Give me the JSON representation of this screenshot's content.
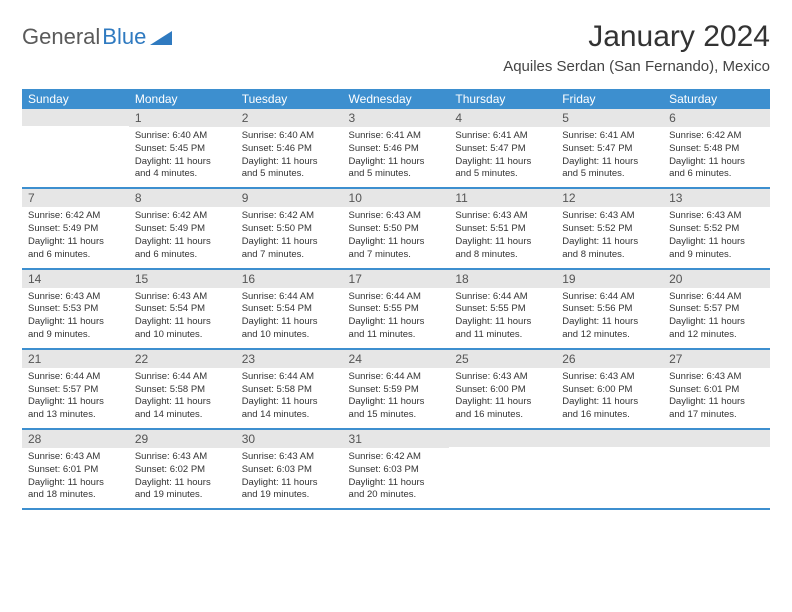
{
  "logo": {
    "text1": "General",
    "text2": "Blue"
  },
  "title": {
    "month": "January 2024",
    "location": "Aquiles Serdan (San Fernando), Mexico"
  },
  "colors": {
    "header_bg": "#3d8fcf",
    "header_text": "#ffffff",
    "daynum_bg": "#e6e6e6",
    "text": "#333333",
    "rule": "#3d8fcf"
  },
  "dayNames": [
    "Sunday",
    "Monday",
    "Tuesday",
    "Wednesday",
    "Thursday",
    "Friday",
    "Saturday"
  ],
  "weeks": [
    [
      {
        "num": "",
        "lines": []
      },
      {
        "num": "1",
        "lines": [
          "Sunrise: 6:40 AM",
          "Sunset: 5:45 PM",
          "Daylight: 11 hours",
          "and 4 minutes."
        ]
      },
      {
        "num": "2",
        "lines": [
          "Sunrise: 6:40 AM",
          "Sunset: 5:46 PM",
          "Daylight: 11 hours",
          "and 5 minutes."
        ]
      },
      {
        "num": "3",
        "lines": [
          "Sunrise: 6:41 AM",
          "Sunset: 5:46 PM",
          "Daylight: 11 hours",
          "and 5 minutes."
        ]
      },
      {
        "num": "4",
        "lines": [
          "Sunrise: 6:41 AM",
          "Sunset: 5:47 PM",
          "Daylight: 11 hours",
          "and 5 minutes."
        ]
      },
      {
        "num": "5",
        "lines": [
          "Sunrise: 6:41 AM",
          "Sunset: 5:47 PM",
          "Daylight: 11 hours",
          "and 5 minutes."
        ]
      },
      {
        "num": "6",
        "lines": [
          "Sunrise: 6:42 AM",
          "Sunset: 5:48 PM",
          "Daylight: 11 hours",
          "and 6 minutes."
        ]
      }
    ],
    [
      {
        "num": "7",
        "lines": [
          "Sunrise: 6:42 AM",
          "Sunset: 5:49 PM",
          "Daylight: 11 hours",
          "and 6 minutes."
        ]
      },
      {
        "num": "8",
        "lines": [
          "Sunrise: 6:42 AM",
          "Sunset: 5:49 PM",
          "Daylight: 11 hours",
          "and 6 minutes."
        ]
      },
      {
        "num": "9",
        "lines": [
          "Sunrise: 6:42 AM",
          "Sunset: 5:50 PM",
          "Daylight: 11 hours",
          "and 7 minutes."
        ]
      },
      {
        "num": "10",
        "lines": [
          "Sunrise: 6:43 AM",
          "Sunset: 5:50 PM",
          "Daylight: 11 hours",
          "and 7 minutes."
        ]
      },
      {
        "num": "11",
        "lines": [
          "Sunrise: 6:43 AM",
          "Sunset: 5:51 PM",
          "Daylight: 11 hours",
          "and 8 minutes."
        ]
      },
      {
        "num": "12",
        "lines": [
          "Sunrise: 6:43 AM",
          "Sunset: 5:52 PM",
          "Daylight: 11 hours",
          "and 8 minutes."
        ]
      },
      {
        "num": "13",
        "lines": [
          "Sunrise: 6:43 AM",
          "Sunset: 5:52 PM",
          "Daylight: 11 hours",
          "and 9 minutes."
        ]
      }
    ],
    [
      {
        "num": "14",
        "lines": [
          "Sunrise: 6:43 AM",
          "Sunset: 5:53 PM",
          "Daylight: 11 hours",
          "and 9 minutes."
        ]
      },
      {
        "num": "15",
        "lines": [
          "Sunrise: 6:43 AM",
          "Sunset: 5:54 PM",
          "Daylight: 11 hours",
          "and 10 minutes."
        ]
      },
      {
        "num": "16",
        "lines": [
          "Sunrise: 6:44 AM",
          "Sunset: 5:54 PM",
          "Daylight: 11 hours",
          "and 10 minutes."
        ]
      },
      {
        "num": "17",
        "lines": [
          "Sunrise: 6:44 AM",
          "Sunset: 5:55 PM",
          "Daylight: 11 hours",
          "and 11 minutes."
        ]
      },
      {
        "num": "18",
        "lines": [
          "Sunrise: 6:44 AM",
          "Sunset: 5:55 PM",
          "Daylight: 11 hours",
          "and 11 minutes."
        ]
      },
      {
        "num": "19",
        "lines": [
          "Sunrise: 6:44 AM",
          "Sunset: 5:56 PM",
          "Daylight: 11 hours",
          "and 12 minutes."
        ]
      },
      {
        "num": "20",
        "lines": [
          "Sunrise: 6:44 AM",
          "Sunset: 5:57 PM",
          "Daylight: 11 hours",
          "and 12 minutes."
        ]
      }
    ],
    [
      {
        "num": "21",
        "lines": [
          "Sunrise: 6:44 AM",
          "Sunset: 5:57 PM",
          "Daylight: 11 hours",
          "and 13 minutes."
        ]
      },
      {
        "num": "22",
        "lines": [
          "Sunrise: 6:44 AM",
          "Sunset: 5:58 PM",
          "Daylight: 11 hours",
          "and 14 minutes."
        ]
      },
      {
        "num": "23",
        "lines": [
          "Sunrise: 6:44 AM",
          "Sunset: 5:58 PM",
          "Daylight: 11 hours",
          "and 14 minutes."
        ]
      },
      {
        "num": "24",
        "lines": [
          "Sunrise: 6:44 AM",
          "Sunset: 5:59 PM",
          "Daylight: 11 hours",
          "and 15 minutes."
        ]
      },
      {
        "num": "25",
        "lines": [
          "Sunrise: 6:43 AM",
          "Sunset: 6:00 PM",
          "Daylight: 11 hours",
          "and 16 minutes."
        ]
      },
      {
        "num": "26",
        "lines": [
          "Sunrise: 6:43 AM",
          "Sunset: 6:00 PM",
          "Daylight: 11 hours",
          "and 16 minutes."
        ]
      },
      {
        "num": "27",
        "lines": [
          "Sunrise: 6:43 AM",
          "Sunset: 6:01 PM",
          "Daylight: 11 hours",
          "and 17 minutes."
        ]
      }
    ],
    [
      {
        "num": "28",
        "lines": [
          "Sunrise: 6:43 AM",
          "Sunset: 6:01 PM",
          "Daylight: 11 hours",
          "and 18 minutes."
        ]
      },
      {
        "num": "29",
        "lines": [
          "Sunrise: 6:43 AM",
          "Sunset: 6:02 PM",
          "Daylight: 11 hours",
          "and 19 minutes."
        ]
      },
      {
        "num": "30",
        "lines": [
          "Sunrise: 6:43 AM",
          "Sunset: 6:03 PM",
          "Daylight: 11 hours",
          "and 19 minutes."
        ]
      },
      {
        "num": "31",
        "lines": [
          "Sunrise: 6:42 AM",
          "Sunset: 6:03 PM",
          "Daylight: 11 hours",
          "and 20 minutes."
        ]
      },
      {
        "num": "",
        "lines": []
      },
      {
        "num": "",
        "lines": []
      },
      {
        "num": "",
        "lines": []
      }
    ]
  ]
}
